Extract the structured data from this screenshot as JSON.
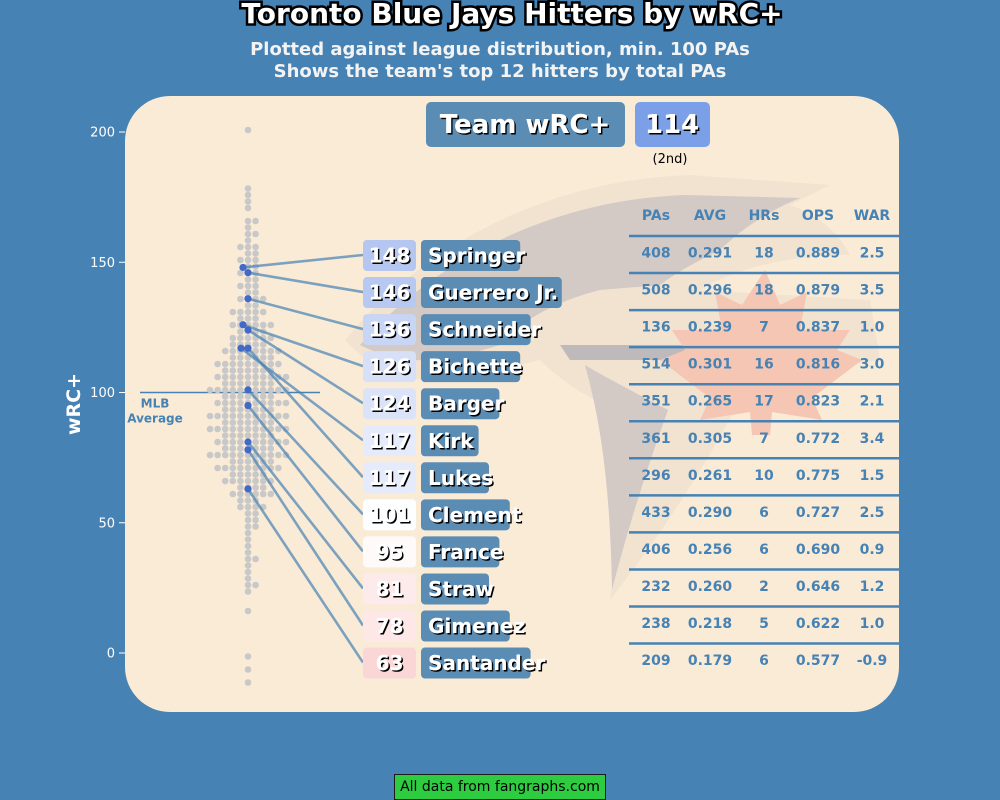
{
  "title": "Toronto Blue Jays Hitters by wRC+",
  "subtitle_line1": "Plotted against league distribution, min. 100 PAs",
  "subtitle_line2": "Shows the team's top 12 hitters by total PAs",
  "team_badge": {
    "label": "Team wRC+",
    "value": "114",
    "rank": "(2nd)"
  },
  "mlb_average_label": [
    "MLB",
    "Average"
  ],
  "footer": "All data from fangraphs.com",
  "colors": {
    "background": "#4682b4",
    "panel": "#faebd7",
    "accent": "#4682b4",
    "team_value_bg": "#7ca0e8",
    "dot": "#c8c8c8",
    "player_dot": "#4169c8"
  },
  "logo_icon": "blue-jays-logo-icon",
  "chart_data": {
    "type": "scatter",
    "ylabel": "wRC+",
    "ylim": [
      -15,
      215
    ],
    "yticks": [
      0,
      50,
      100,
      150,
      200
    ],
    "mlb_average": 100,
    "columns": [
      "PAs",
      "AVG",
      "HRs",
      "OPS",
      "WAR"
    ],
    "players": [
      {
        "name": "Springer",
        "wrc": 148,
        "pa": "408",
        "avg": "0.291",
        "hr": "18",
        "ops": "0.889",
        "war": "2.5"
      },
      {
        "name": "Guerrero Jr.",
        "wrc": 146,
        "pa": "508",
        "avg": "0.296",
        "hr": "18",
        "ops": "0.879",
        "war": "3.5"
      },
      {
        "name": "Schneider",
        "wrc": 136,
        "pa": "136",
        "avg": "0.239",
        "hr": "7",
        "ops": "0.837",
        "war": "1.0"
      },
      {
        "name": "Bichette",
        "wrc": 126,
        "pa": "514",
        "avg": "0.301",
        "hr": "16",
        "ops": "0.816",
        "war": "3.0"
      },
      {
        "name": "Barger",
        "wrc": 124,
        "pa": "351",
        "avg": "0.265",
        "hr": "17",
        "ops": "0.823",
        "war": "2.1"
      },
      {
        "name": "Kirk",
        "wrc": 117,
        "pa": "361",
        "avg": "0.305",
        "hr": "7",
        "ops": "0.772",
        "war": "3.4"
      },
      {
        "name": "Lukes",
        "wrc": 117,
        "pa": "296",
        "avg": "0.261",
        "hr": "10",
        "ops": "0.775",
        "war": "1.5"
      },
      {
        "name": "Clement",
        "wrc": 101,
        "pa": "433",
        "avg": "0.290",
        "hr": "6",
        "ops": "0.727",
        "war": "2.5"
      },
      {
        "name": "France",
        "wrc": 95,
        "pa": "406",
        "avg": "0.256",
        "hr": "6",
        "ops": "0.690",
        "war": "0.9"
      },
      {
        "name": "Straw",
        "wrc": 81,
        "pa": "232",
        "avg": "0.260",
        "hr": "2",
        "ops": "0.646",
        "war": "1.2"
      },
      {
        "name": "Gimenez",
        "wrc": 78,
        "pa": "238",
        "avg": "0.218",
        "hr": "5",
        "ops": "0.622",
        "war": "1.0"
      },
      {
        "name": "Santander",
        "wrc": 63,
        "pa": "209",
        "avg": "0.179",
        "hr": "6",
        "ops": "0.577",
        "war": "-0.9"
      }
    ],
    "league_distribution": [
      -12,
      -7,
      -1,
      15,
      24,
      26,
      27,
      28,
      30,
      33,
      35,
      36,
      39,
      41,
      44,
      46,
      48,
      49,
      51,
      52,
      53,
      54,
      55,
      56,
      57,
      57,
      58,
      58,
      59,
      60,
      60,
      61,
      61,
      62,
      62,
      63,
      63,
      64,
      64,
      65,
      65,
      66,
      66,
      66,
      67,
      67,
      68,
      68,
      68,
      69,
      69,
      70,
      70,
      70,
      71,
      71,
      71,
      72,
      72,
      72,
      73,
      73,
      73,
      74,
      74,
      74,
      75,
      75,
      75,
      75,
      76,
      76,
      76,
      77,
      77,
      77,
      77,
      78,
      78,
      78,
      79,
      79,
      79,
      79,
      80,
      80,
      80,
      81,
      81,
      81,
      81,
      82,
      82,
      82,
      83,
      83,
      83,
      83,
      84,
      84,
      84,
      85,
      85,
      85,
      85,
      86,
      86,
      86,
      87,
      87,
      87,
      87,
      88,
      88,
      88,
      88,
      89,
      89,
      89,
      90,
      90,
      90,
      90,
      91,
      91,
      91,
      92,
      92,
      92,
      92,
      93,
      93,
      93,
      94,
      94,
      94,
      94,
      95,
      95,
      95,
      96,
      96,
      96,
      96,
      97,
      97,
      97,
      98,
      98,
      98,
      98,
      99,
      99,
      99,
      100,
      100,
      100,
      100,
      101,
      101,
      101,
      102,
      102,
      102,
      102,
      103,
      103,
      103,
      104,
      104,
      104,
      104,
      105,
      105,
      105,
      106,
      106,
      106,
      106,
      107,
      107,
      107,
      108,
      108,
      108,
      108,
      109,
      109,
      109,
      110,
      110,
      110,
      111,
      111,
      111,
      112,
      112,
      112,
      113,
      113,
      113,
      114,
      114,
      114,
      115,
      115,
      115,
      116,
      116,
      117,
      117,
      117,
      118,
      118,
      119,
      119,
      119,
      120,
      120,
      121,
      121,
      122,
      122,
      123,
      123,
      124,
      124,
      125,
      125,
      126,
      126,
      127,
      127,
      128,
      129,
      129,
      130,
      130,
      131,
      132,
      132,
      133,
      134,
      135,
      135,
      136,
      137,
      138,
      139,
      140,
      141,
      142,
      143,
      144,
      145,
      146,
      147,
      148,
      149,
      150,
      151,
      152,
      153,
      154,
      155,
      156,
      157,
      158,
      160,
      161,
      163,
      165,
      167,
      170,
      173,
      176,
      178,
      202
    ]
  }
}
